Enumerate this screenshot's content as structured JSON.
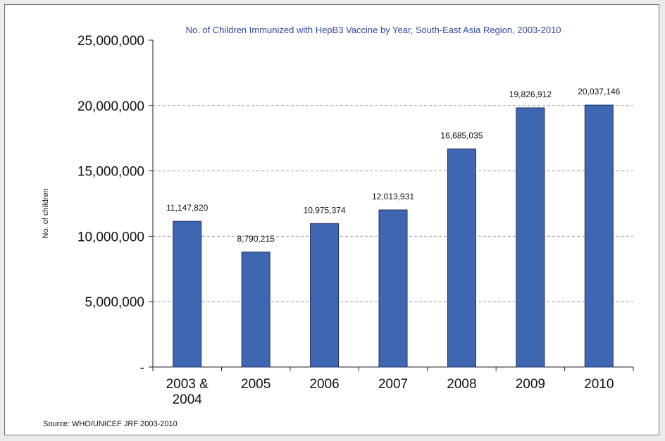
{
  "chart_data": {
    "type": "bar",
    "title": "No. of Children Immunized with HepB3 Vaccine by Year, South-East Asia Region, 2003-2010",
    "xlabel": "",
    "ylabel": "No. of children",
    "categories": [
      [
        "2003 &",
        "2004"
      ],
      [
        "2005"
      ],
      [
        "2006"
      ],
      [
        "2007"
      ],
      [
        "2008"
      ],
      [
        "2009"
      ],
      [
        "2010"
      ]
    ],
    "values": [
      11147820,
      8790215,
      10975374,
      12013931,
      16685035,
      19826912,
      20037146
    ],
    "data_labels": [
      "11,147,820",
      "8,790,215",
      "10,975,374",
      "12,013,931",
      "16,685,035",
      "19,826,912",
      "20,037,146"
    ],
    "ylim": [
      0,
      25000000
    ],
    "yticks": [
      0,
      5000000,
      10000000,
      15000000,
      20000000,
      25000000
    ],
    "ytick_labels": [
      "-",
      "5,000,000",
      "10,000,000",
      "15,000,000",
      "20,000,000",
      "25,000,000"
    ],
    "grid": "horizontal-dashed",
    "legend": "none",
    "colors": {
      "bar_fill": "#3f66b1",
      "bar_stroke": "#1f2f66",
      "title": "#2f49a0",
      "grid": "#999999"
    }
  },
  "source_note": "Source: WHO/UNICEF JRF 2003-2010"
}
